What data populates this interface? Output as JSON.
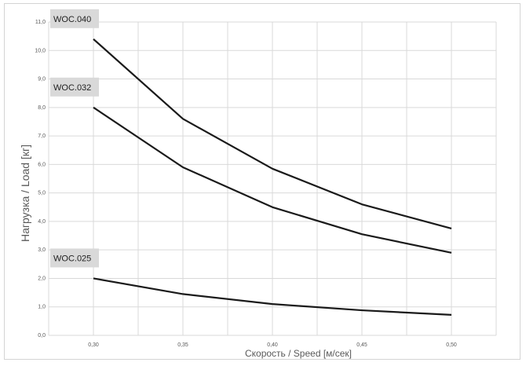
{
  "chart_data": {
    "type": "line",
    "title": "",
    "xlabel": "Скорость / Speed [м/сек]",
    "ylabel": "Нагрузка / Load [кг]",
    "x": [
      0.3,
      0.35,
      0.4,
      0.45,
      0.5
    ],
    "x_tick_labels": [
      "0,30",
      "0,35",
      "0,40",
      "0,45",
      "0,50"
    ],
    "xlim": [
      0.275,
      0.525
    ],
    "ylim": [
      0,
      11
    ],
    "y_ticks": [
      0,
      1,
      2,
      3,
      4,
      5,
      6,
      7,
      8,
      9,
      10,
      11
    ],
    "y_tick_labels": [
      "0,0",
      "1,0",
      "2,0",
      "3,0",
      "4,0",
      "5,0",
      "6,0",
      "7,0",
      "8,0",
      "9,0",
      "10,0",
      "11,0"
    ],
    "grid": true,
    "series": [
      {
        "name": "WOC.040",
        "values": [
          10.4,
          7.6,
          5.85,
          4.6,
          3.75
        ]
      },
      {
        "name": "WOC.032",
        "values": [
          8.0,
          5.9,
          4.5,
          3.55,
          2.9
        ]
      },
      {
        "name": "WOC.025",
        "values": [
          2.0,
          1.45,
          1.1,
          0.88,
          0.72
        ]
      }
    ],
    "line_color": "#1a1a1a",
    "grid_color": "#d9d9d9",
    "label_bg_color": "#d9d9d9"
  }
}
